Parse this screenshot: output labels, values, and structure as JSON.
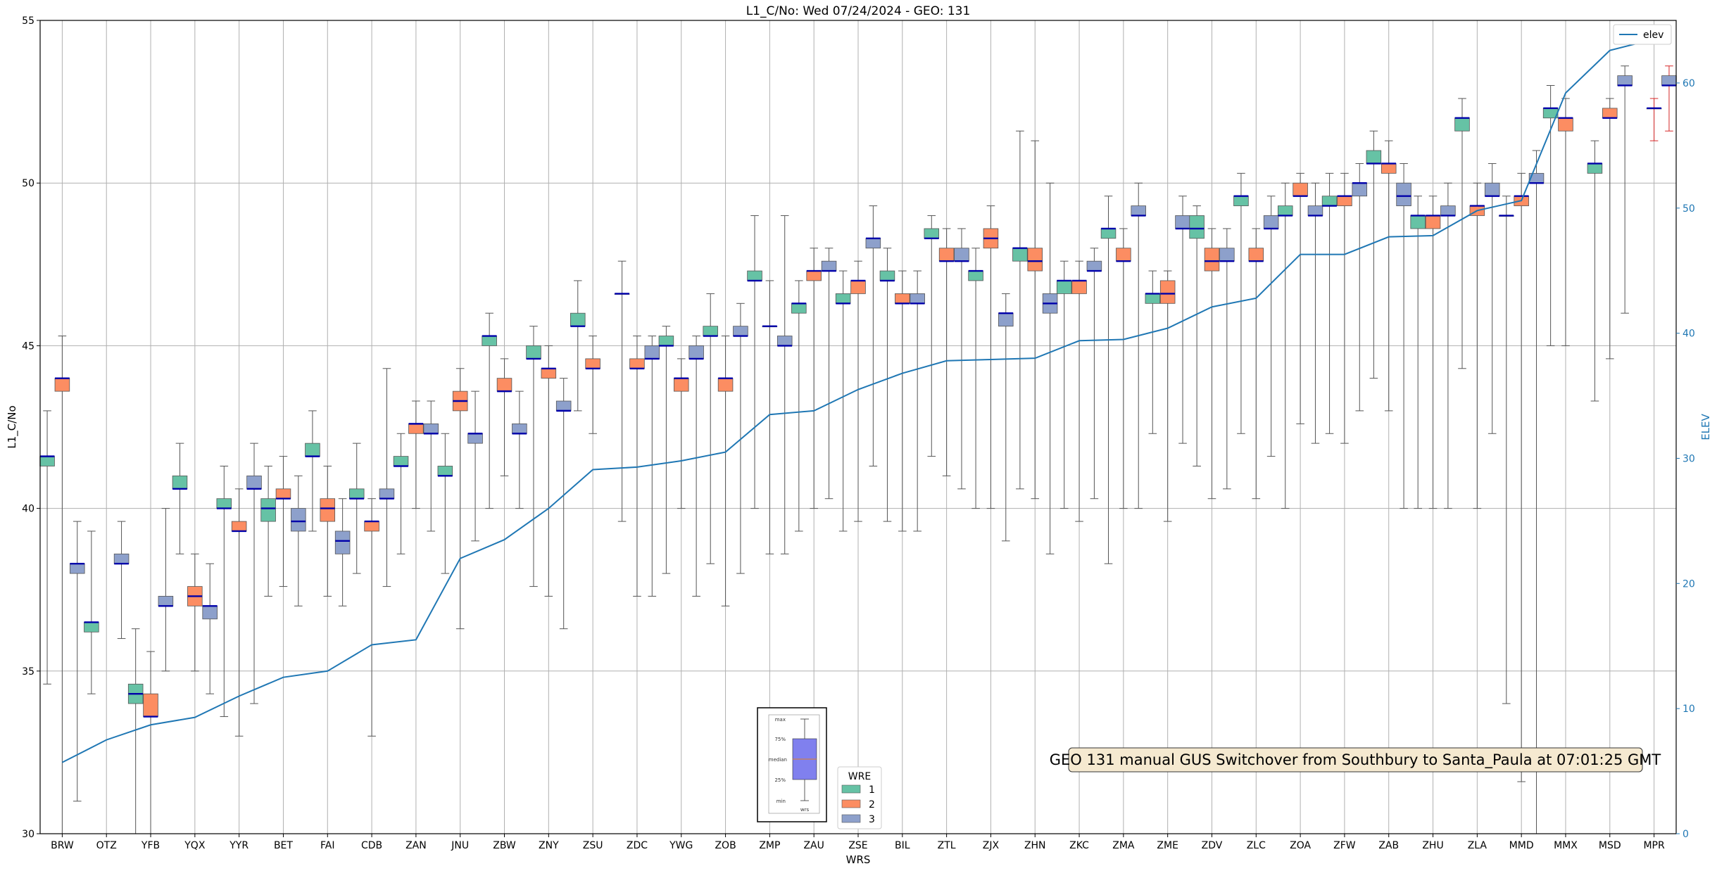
{
  "chart_data": {
    "type": "box",
    "title": "L1_C/No: Wed 07/24/2024 - GEO: 131",
    "xlabel": "WRS",
    "ylabel": "L1_C/No",
    "y2label": "ELEV",
    "ylim": [
      30,
      55
    ],
    "y2lim": [
      0,
      65
    ],
    "yticks": [
      30,
      35,
      40,
      45,
      50,
      55
    ],
    "y2ticks": [
      0,
      10,
      20,
      30,
      40,
      50,
      60
    ],
    "grid": true,
    "categories": [
      "BRW",
      "OTZ",
      "YFB",
      "YQX",
      "YYR",
      "BET",
      "FAI",
      "CDB",
      "ZAN",
      "JNU",
      "ZBW",
      "ZNY",
      "ZSU",
      "ZDC",
      "YWG",
      "ZOB",
      "ZMP",
      "ZAU",
      "ZSE",
      "BIL",
      "ZTL",
      "ZJX",
      "ZHN",
      "ZKC",
      "ZMA",
      "ZME",
      "ZDV",
      "ZLC",
      "ZOA",
      "ZFW",
      "ZAB",
      "ZHU",
      "ZLA",
      "MMD",
      "MMX",
      "MSD",
      "MPR"
    ],
    "elev_series": {
      "name": "elev",
      "values": [
        5.7,
        7.5,
        8.7,
        9.3,
        11.0,
        12.5,
        13.0,
        15.1,
        15.5,
        22.0,
        23.5,
        26.0,
        29.1,
        29.3,
        29.8,
        30.5,
        33.5,
        33.8,
        35.5,
        36.8,
        37.8,
        37.9,
        38.0,
        39.4,
        39.5,
        40.4,
        42.1,
        42.8,
        46.3,
        46.3,
        47.7,
        47.8,
        49.8,
        50.6,
        59.2,
        62.6,
        63.5
      ]
    },
    "wre_colors": {
      "1": "#66c2a5",
      "2": "#fc8d62",
      "3": "#8da0cb"
    },
    "boxes": [
      {
        "wrs": "BRW",
        "wre": 1,
        "q1": 41.3,
        "median": 41.6,
        "q3": 41.6,
        "min": 34.6,
        "max": 43.0
      },
      {
        "wrs": "BRW",
        "wre": 2,
        "q1": 43.6,
        "median": 44.0,
        "q3": 44.0,
        "min": 30.0,
        "max": 45.3
      },
      {
        "wrs": "BRW",
        "wre": 3,
        "q1": 38.0,
        "median": 38.3,
        "q3": 38.3,
        "min": 31.0,
        "max": 39.6
      },
      {
        "wrs": "OTZ",
        "wre": 1,
        "q1": 36.2,
        "median": 36.5,
        "q3": 36.5,
        "min": 34.3,
        "max": 39.3
      },
      {
        "wrs": "OTZ",
        "wre": 3,
        "q1": 38.3,
        "median": 38.3,
        "q3": 38.6,
        "min": 36.0,
        "max": 39.6
      },
      {
        "wrs": "YFB",
        "wre": 1,
        "q1": 34.0,
        "median": 34.3,
        "q3": 34.6,
        "min": 30.0,
        "max": 36.3
      },
      {
        "wrs": "YFB",
        "wre": 2,
        "q1": 33.6,
        "median": 33.6,
        "q3": 34.3,
        "min": 30.0,
        "max": 35.6
      },
      {
        "wrs": "YFB",
        "wre": 3,
        "q1": 37.0,
        "median": 37.0,
        "q3": 37.3,
        "min": 35.0,
        "max": 40.0
      },
      {
        "wrs": "YQX",
        "wre": 1,
        "q1": 40.6,
        "median": 40.6,
        "q3": 41.0,
        "min": 38.6,
        "max": 42.0
      },
      {
        "wrs": "YQX",
        "wre": 2,
        "q1": 37.0,
        "median": 37.3,
        "q3": 37.6,
        "min": 35.0,
        "max": 38.6
      },
      {
        "wrs": "YQX",
        "wre": 3,
        "q1": 36.6,
        "median": 37.0,
        "q3": 37.0,
        "min": 34.3,
        "max": 38.3
      },
      {
        "wrs": "YYR",
        "wre": 1,
        "q1": 40.0,
        "median": 40.0,
        "q3": 40.3,
        "min": 33.6,
        "max": 41.3
      },
      {
        "wrs": "YYR",
        "wre": 2,
        "q1": 39.3,
        "median": 39.3,
        "q3": 39.6,
        "min": 33.0,
        "max": 40.6
      },
      {
        "wrs": "YYR",
        "wre": 3,
        "q1": 40.6,
        "median": 40.6,
        "q3": 41.0,
        "min": 34.0,
        "max": 42.0
      },
      {
        "wrs": "BET",
        "wre": 1,
        "q1": 39.6,
        "median": 40.0,
        "q3": 40.3,
        "min": 37.3,
        "max": 41.3
      },
      {
        "wrs": "BET",
        "wre": 2,
        "q1": 40.3,
        "median": 40.3,
        "q3": 40.6,
        "min": 37.6,
        "max": 41.6
      },
      {
        "wrs": "BET",
        "wre": 3,
        "q1": 39.3,
        "median": 39.6,
        "q3": 40.0,
        "min": 37.0,
        "max": 41.0
      },
      {
        "wrs": "FAI",
        "wre": 1,
        "q1": 41.6,
        "median": 41.6,
        "q3": 42.0,
        "min": 39.3,
        "max": 43.0
      },
      {
        "wrs": "FAI",
        "wre": 2,
        "q1": 39.6,
        "median": 40.0,
        "q3": 40.3,
        "min": 37.3,
        "max": 41.3
      },
      {
        "wrs": "FAI",
        "wre": 3,
        "q1": 38.6,
        "median": 39.0,
        "q3": 39.3,
        "min": 37.0,
        "max": 40.3
      },
      {
        "wrs": "CDB",
        "wre": 1,
        "q1": 40.3,
        "median": 40.3,
        "q3": 40.6,
        "min": 38.0,
        "max": 42.0
      },
      {
        "wrs": "CDB",
        "wre": 2,
        "q1": 39.3,
        "median": 39.6,
        "q3": 39.6,
        "min": 33.0,
        "max": 40.3
      },
      {
        "wrs": "CDB",
        "wre": 3,
        "q1": 40.3,
        "median": 40.3,
        "q3": 40.6,
        "min": 37.6,
        "max": 44.3
      },
      {
        "wrs": "ZAN",
        "wre": 1,
        "q1": 41.3,
        "median": 41.3,
        "q3": 41.6,
        "min": 38.6,
        "max": 42.3
      },
      {
        "wrs": "ZAN",
        "wre": 2,
        "q1": 42.3,
        "median": 42.6,
        "q3": 42.6,
        "min": 40.0,
        "max": 43.3
      },
      {
        "wrs": "ZAN",
        "wre": 3,
        "q1": 42.3,
        "median": 42.3,
        "q3": 42.6,
        "min": 39.3,
        "max": 43.3
      },
      {
        "wrs": "JNU",
        "wre": 1,
        "q1": 41.0,
        "median": 41.0,
        "q3": 41.3,
        "min": 38.0,
        "max": 42.3
      },
      {
        "wrs": "JNU",
        "wre": 2,
        "q1": 43.0,
        "median": 43.3,
        "q3": 43.6,
        "min": 36.3,
        "max": 44.3
      },
      {
        "wrs": "JNU",
        "wre": 3,
        "q1": 42.0,
        "median": 42.3,
        "q3": 42.3,
        "min": 39.0,
        "max": 43.6
      },
      {
        "wrs": "ZBW",
        "wre": 1,
        "q1": 45.0,
        "median": 45.3,
        "q3": 45.3,
        "min": 40.0,
        "max": 46.0
      },
      {
        "wrs": "ZBW",
        "wre": 2,
        "q1": 43.6,
        "median": 43.6,
        "q3": 44.0,
        "min": 41.0,
        "max": 44.6
      },
      {
        "wrs": "ZBW",
        "wre": 3,
        "q1": 42.3,
        "median": 42.3,
        "q3": 42.6,
        "min": 40.0,
        "max": 43.6
      },
      {
        "wrs": "ZNY",
        "wre": 1,
        "q1": 44.6,
        "median": 44.6,
        "q3": 45.0,
        "min": 37.6,
        "max": 45.6
      },
      {
        "wrs": "ZNY",
        "wre": 2,
        "q1": 44.0,
        "median": 44.3,
        "q3": 44.3,
        "min": 37.3,
        "max": 45.0
      },
      {
        "wrs": "ZNY",
        "wre": 3,
        "q1": 43.0,
        "median": 43.0,
        "q3": 43.3,
        "min": 36.3,
        "max": 44.0
      },
      {
        "wrs": "ZSU",
        "wre": 1,
        "q1": 45.6,
        "median": 45.6,
        "q3": 46.0,
        "min": 43.0,
        "max": 47.0
      },
      {
        "wrs": "ZSU",
        "wre": 2,
        "q1": 44.3,
        "median": 44.3,
        "q3": 44.6,
        "min": 42.3,
        "max": 45.3
      },
      {
        "wrs": "ZDC",
        "wre": 1,
        "q1": 46.6,
        "median": 46.6,
        "q3": 46.6,
        "min": 39.6,
        "max": 47.6
      },
      {
        "wrs": "ZDC",
        "wre": 2,
        "q1": 44.3,
        "median": 44.3,
        "q3": 44.6,
        "min": 37.3,
        "max": 45.3
      },
      {
        "wrs": "ZDC",
        "wre": 3,
        "q1": 44.6,
        "median": 44.6,
        "q3": 45.0,
        "min": 37.3,
        "max": 45.3
      },
      {
        "wrs": "YWG",
        "wre": 1,
        "q1": 45.0,
        "median": 45.0,
        "q3": 45.3,
        "min": 38.0,
        "max": 45.6
      },
      {
        "wrs": "YWG",
        "wre": 2,
        "q1": 43.6,
        "median": 44.0,
        "q3": 44.0,
        "min": 40.0,
        "max": 44.6
      },
      {
        "wrs": "YWG",
        "wre": 3,
        "q1": 44.6,
        "median": 44.6,
        "q3": 45.0,
        "min": 37.3,
        "max": 45.3
      },
      {
        "wrs": "ZOB",
        "wre": 1,
        "q1": 45.3,
        "median": 45.3,
        "q3": 45.6,
        "min": 38.3,
        "max": 46.6
      },
      {
        "wrs": "ZOB",
        "wre": 2,
        "q1": 43.6,
        "median": 44.0,
        "q3": 44.0,
        "min": 37.0,
        "max": 45.3
      },
      {
        "wrs": "ZOB",
        "wre": 3,
        "q1": 45.3,
        "median": 45.3,
        "q3": 45.6,
        "min": 38.0,
        "max": 46.3
      },
      {
        "wrs": "ZMP",
        "wre": 1,
        "q1": 47.0,
        "median": 47.0,
        "q3": 47.3,
        "min": 40.0,
        "max": 49.0
      },
      {
        "wrs": "ZMP",
        "wre": 2,
        "q1": 45.6,
        "median": 45.6,
        "q3": 45.6,
        "min": 38.6,
        "max": 47.0
      },
      {
        "wrs": "ZMP",
        "wre": 3,
        "q1": 45.0,
        "median": 45.0,
        "q3": 45.3,
        "min": 38.6,
        "max": 49.0
      },
      {
        "wrs": "ZAU",
        "wre": 1,
        "q1": 46.0,
        "median": 46.3,
        "q3": 46.3,
        "min": 39.3,
        "max": 47.0
      },
      {
        "wrs": "ZAU",
        "wre": 2,
        "q1": 47.0,
        "median": 47.3,
        "q3": 47.3,
        "min": 40.0,
        "max": 48.0
      },
      {
        "wrs": "ZAU",
        "wre": 3,
        "q1": 47.3,
        "median": 47.3,
        "q3": 47.6,
        "min": 40.3,
        "max": 48.0
      },
      {
        "wrs": "ZSE",
        "wre": 1,
        "q1": 46.3,
        "median": 46.3,
        "q3": 46.6,
        "min": 39.3,
        "max": 47.3
      },
      {
        "wrs": "ZSE",
        "wre": 2,
        "q1": 46.6,
        "median": 47.0,
        "q3": 47.0,
        "min": 39.6,
        "max": 47.6
      },
      {
        "wrs": "ZSE",
        "wre": 3,
        "q1": 48.0,
        "median": 48.3,
        "q3": 48.3,
        "min": 41.3,
        "max": 49.3
      },
      {
        "wrs": "BIL",
        "wre": 1,
        "q1": 47.0,
        "median": 47.0,
        "q3": 47.3,
        "min": 39.6,
        "max": 48.0
      },
      {
        "wrs": "BIL",
        "wre": 2,
        "q1": 46.3,
        "median": 46.3,
        "q3": 46.6,
        "min": 39.3,
        "max": 47.3
      },
      {
        "wrs": "BIL",
        "wre": 3,
        "q1": 46.3,
        "median": 46.3,
        "q3": 46.6,
        "min": 39.3,
        "max": 47.3
      },
      {
        "wrs": "ZTL",
        "wre": 1,
        "q1": 48.3,
        "median": 48.3,
        "q3": 48.6,
        "min": 41.6,
        "max": 49.0
      },
      {
        "wrs": "ZTL",
        "wre": 2,
        "q1": 47.6,
        "median": 47.6,
        "q3": 48.0,
        "min": 41.0,
        "max": 48.6
      },
      {
        "wrs": "ZTL",
        "wre": 3,
        "q1": 47.6,
        "median": 47.6,
        "q3": 48.0,
        "min": 40.6,
        "max": 48.6
      },
      {
        "wrs": "ZJX",
        "wre": 1,
        "q1": 47.0,
        "median": 47.3,
        "q3": 47.3,
        "min": 40.0,
        "max": 48.0
      },
      {
        "wrs": "ZJX",
        "wre": 2,
        "q1": 48.0,
        "median": 48.3,
        "q3": 48.6,
        "min": 40.0,
        "max": 49.3
      },
      {
        "wrs": "ZJX",
        "wre": 3,
        "q1": 45.6,
        "median": 46.0,
        "q3": 46.0,
        "min": 39.0,
        "max": 46.6
      },
      {
        "wrs": "ZHN",
        "wre": 1,
        "q1": 47.6,
        "median": 48.0,
        "q3": 48.0,
        "min": 40.6,
        "max": 51.6
      },
      {
        "wrs": "ZHN",
        "wre": 2,
        "q1": 47.3,
        "median": 47.6,
        "q3": 48.0,
        "min": 40.3,
        "max": 51.3
      },
      {
        "wrs": "ZHN",
        "wre": 3,
        "q1": 46.0,
        "median": 46.3,
        "q3": 46.6,
        "min": 38.6,
        "max": 50.0
      },
      {
        "wrs": "ZKC",
        "wre": 1,
        "q1": 46.6,
        "median": 47.0,
        "q3": 47.0,
        "min": 40.0,
        "max": 47.6
      },
      {
        "wrs": "ZKC",
        "wre": 2,
        "q1": 46.6,
        "median": 47.0,
        "q3": 47.0,
        "min": 39.6,
        "max": 47.6
      },
      {
        "wrs": "ZKC",
        "wre": 3,
        "q1": 47.3,
        "median": 47.3,
        "q3": 47.6,
        "min": 40.3,
        "max": 48.0
      },
      {
        "wrs": "ZMA",
        "wre": 1,
        "q1": 48.3,
        "median": 48.6,
        "q3": 48.6,
        "min": 38.3,
        "max": 49.6
      },
      {
        "wrs": "ZMA",
        "wre": 2,
        "q1": 47.6,
        "median": 47.6,
        "q3": 48.0,
        "min": 40.0,
        "max": 48.6
      },
      {
        "wrs": "ZMA",
        "wre": 3,
        "q1": 49.0,
        "median": 49.0,
        "q3": 49.3,
        "min": 40.0,
        "max": 50.0
      },
      {
        "wrs": "ZME",
        "wre": 1,
        "q1": 46.3,
        "median": 46.6,
        "q3": 46.6,
        "min": 42.3,
        "max": 47.3
      },
      {
        "wrs": "ZME",
        "wre": 2,
        "q1": 46.3,
        "median": 46.6,
        "q3": 47.0,
        "min": 39.6,
        "max": 47.3
      },
      {
        "wrs": "ZME",
        "wre": 3,
        "q1": 48.6,
        "median": 48.6,
        "q3": 49.0,
        "min": 42.0,
        "max": 49.6
      },
      {
        "wrs": "ZDV",
        "wre": 1,
        "q1": 48.3,
        "median": 48.6,
        "q3": 49.0,
        "min": 41.3,
        "max": 49.3
      },
      {
        "wrs": "ZDV",
        "wre": 2,
        "q1": 47.3,
        "median": 47.6,
        "q3": 48.0,
        "min": 40.3,
        "max": 48.6
      },
      {
        "wrs": "ZDV",
        "wre": 3,
        "q1": 47.6,
        "median": 47.6,
        "q3": 48.0,
        "min": 40.6,
        "max": 48.6
      },
      {
        "wrs": "ZLC",
        "wre": 1,
        "q1": 49.3,
        "median": 49.6,
        "q3": 49.6,
        "min": 42.3,
        "max": 50.3
      },
      {
        "wrs": "ZLC",
        "wre": 2,
        "q1": 47.6,
        "median": 47.6,
        "q3": 48.0,
        "min": 40.3,
        "max": 48.6
      },
      {
        "wrs": "ZLC",
        "wre": 3,
        "q1": 48.6,
        "median": 48.6,
        "q3": 49.0,
        "min": 41.6,
        "max": 49.6
      },
      {
        "wrs": "ZOA",
        "wre": 1,
        "q1": 49.0,
        "median": 49.0,
        "q3": 49.3,
        "min": 40.0,
        "max": 50.0
      },
      {
        "wrs": "ZOA",
        "wre": 2,
        "q1": 49.6,
        "median": 49.6,
        "q3": 50.0,
        "min": 42.6,
        "max": 50.3
      },
      {
        "wrs": "ZOA",
        "wre": 3,
        "q1": 49.0,
        "median": 49.0,
        "q3": 49.3,
        "min": 42.0,
        "max": 50.0
      },
      {
        "wrs": "ZFW",
        "wre": 1,
        "q1": 49.3,
        "median": 49.3,
        "q3": 49.6,
        "min": 42.3,
        "max": 50.3
      },
      {
        "wrs": "ZFW",
        "wre": 2,
        "q1": 49.3,
        "median": 49.6,
        "q3": 49.6,
        "min": 42.0,
        "max": 50.3
      },
      {
        "wrs": "ZFW",
        "wre": 3,
        "q1": 49.6,
        "median": 50.0,
        "q3": 50.0,
        "min": 43.0,
        "max": 50.6
      },
      {
        "wrs": "ZAB",
        "wre": 1,
        "q1": 50.6,
        "median": 50.6,
        "q3": 51.0,
        "min": 44.0,
        "max": 51.6
      },
      {
        "wrs": "ZAB",
        "wre": 2,
        "q1": 50.3,
        "median": 50.6,
        "q3": 50.6,
        "min": 43.0,
        "max": 51.3
      },
      {
        "wrs": "ZAB",
        "wre": 3,
        "q1": 49.3,
        "median": 49.6,
        "q3": 50.0,
        "min": 40.0,
        "max": 50.6
      },
      {
        "wrs": "ZHU",
        "wre": 1,
        "q1": 48.6,
        "median": 49.0,
        "q3": 49.0,
        "min": 40.0,
        "max": 49.6
      },
      {
        "wrs": "ZHU",
        "wre": 2,
        "q1": 48.6,
        "median": 49.0,
        "q3": 49.0,
        "min": 40.0,
        "max": 49.6
      },
      {
        "wrs": "ZHU",
        "wre": 3,
        "q1": 49.0,
        "median": 49.0,
        "q3": 49.3,
        "min": 40.0,
        "max": 50.0
      },
      {
        "wrs": "ZLA",
        "wre": 1,
        "q1": 51.6,
        "median": 52.0,
        "q3": 52.0,
        "min": 44.3,
        "max": 52.6
      },
      {
        "wrs": "ZLA",
        "wre": 2,
        "q1": 49.0,
        "median": 49.3,
        "q3": 49.3,
        "min": 40.0,
        "max": 50.0
      },
      {
        "wrs": "ZLA",
        "wre": 3,
        "q1": 49.6,
        "median": 49.6,
        "q3": 50.0,
        "min": 42.3,
        "max": 50.6
      },
      {
        "wrs": "MMD",
        "wre": 1,
        "q1": 49.0,
        "median": 49.0,
        "q3": 49.0,
        "min": 34.0,
        "max": 49.6
      },
      {
        "wrs": "MMD",
        "wre": 2,
        "q1": 49.3,
        "median": 49.6,
        "q3": 49.6,
        "min": 31.6,
        "max": 50.3
      },
      {
        "wrs": "MMD",
        "wre": 3,
        "q1": 50.0,
        "median": 50.0,
        "q3": 50.3,
        "min": 30.0,
        "max": 51.0
      },
      {
        "wrs": "MMX",
        "wre": 1,
        "q1": 52.0,
        "median": 52.3,
        "q3": 52.3,
        "min": 45.0,
        "max": 53.0
      },
      {
        "wrs": "MMX",
        "wre": 2,
        "q1": 51.6,
        "median": 52.0,
        "q3": 52.0,
        "min": 45.0,
        "max": 52.6
      },
      {
        "wrs": "MSD",
        "wre": 1,
        "q1": 50.3,
        "median": 50.6,
        "q3": 50.6,
        "min": 43.3,
        "max": 51.3
      },
      {
        "wrs": "MSD",
        "wre": 2,
        "q1": 52.0,
        "median": 52.0,
        "q3": 52.3,
        "min": 44.6,
        "max": 52.6
      },
      {
        "wrs": "MSD",
        "wre": 3,
        "q1": 53.0,
        "median": 53.0,
        "q3": 53.3,
        "min": 46.0,
        "max": 53.6
      },
      {
        "wrs": "MPR",
        "wre": 2,
        "q1": 52.3,
        "median": 52.3,
        "q3": 52.3,
        "min": 51.3,
        "max": 52.6,
        "whisker_color": "#d62728"
      },
      {
        "wrs": "MPR",
        "wre": 3,
        "q1": 53.0,
        "median": 53.0,
        "q3": 53.3,
        "min": 51.6,
        "max": 53.6,
        "whisker_color": "#d62728"
      }
    ]
  },
  "legend_elev": {
    "label": "elev",
    "color": "#1f77b4"
  },
  "legend_wre": {
    "title": "WRE",
    "items": [
      {
        "label": "1",
        "color": "#66c2a5"
      },
      {
        "label": "2",
        "color": "#fc8d62"
      },
      {
        "label": "3",
        "color": "#8da0cb"
      }
    ]
  },
  "inset_key": {
    "labels": [
      "max",
      "75%",
      "median",
      "25%",
      "min"
    ],
    "xlabel": "wrs"
  },
  "annotation": {
    "text": "GEO 131 manual GUS Switchover from Southbury to Santa_Paula at 07:01:25 GMT",
    "background": "#f5e9d0"
  }
}
